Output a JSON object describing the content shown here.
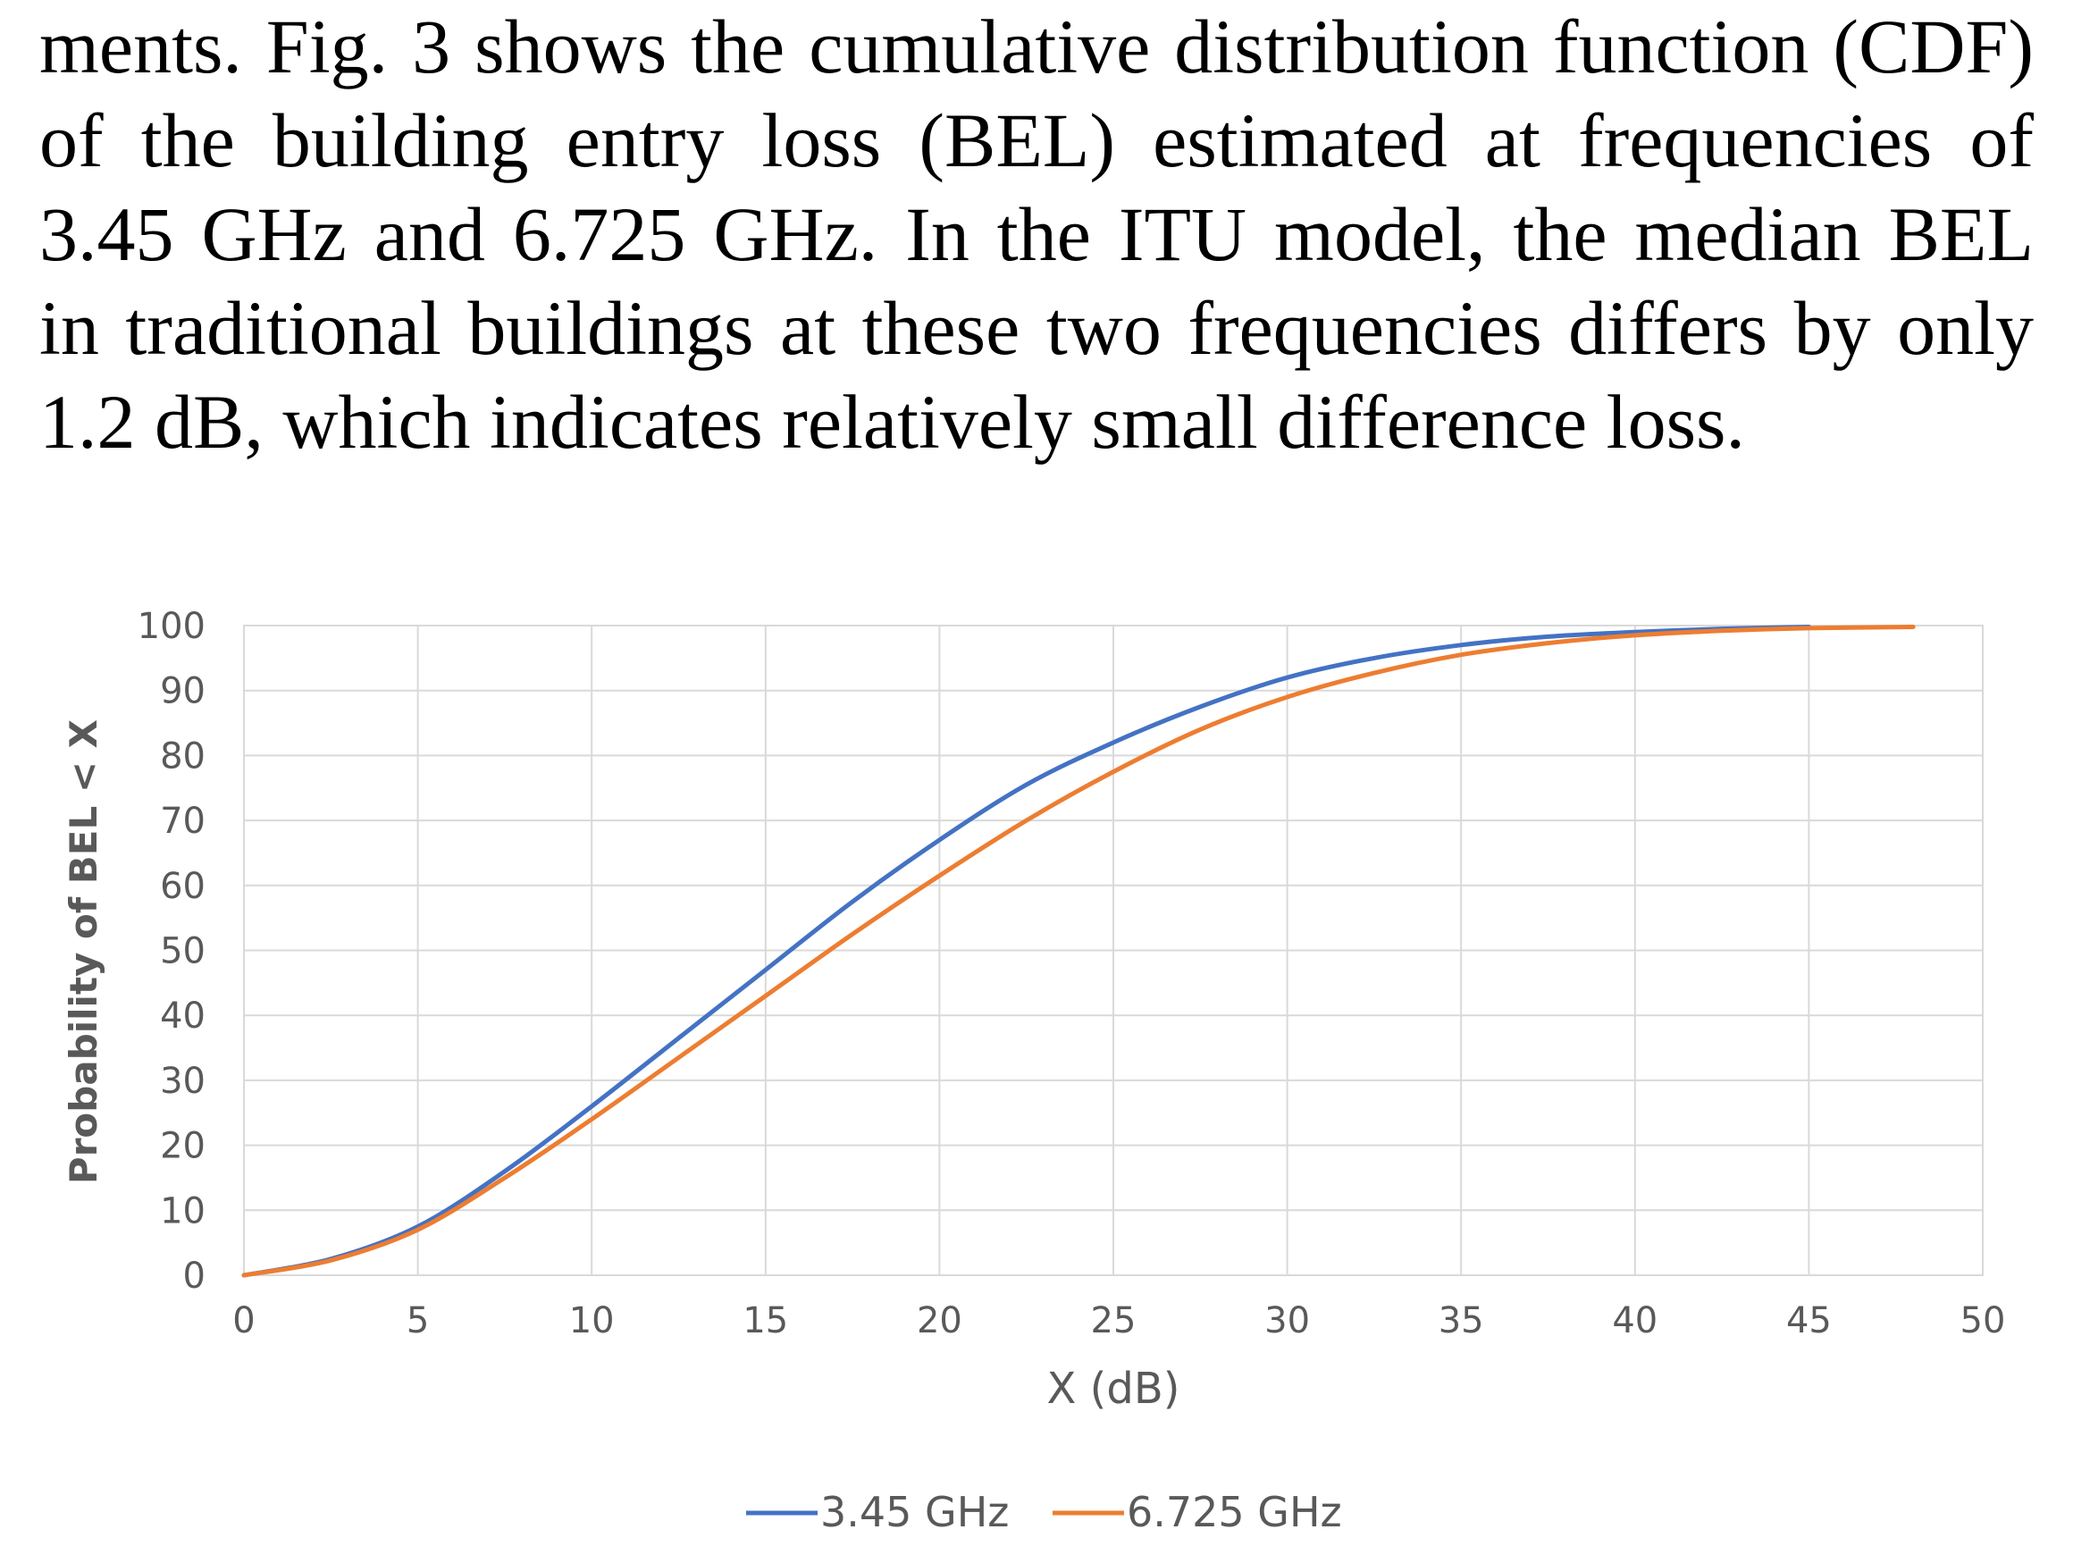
{
  "paragraph": {
    "lines": [
      "ments. Fig. 3 shows the cumulative distribution function (CDF)",
      "of the building entry loss (BEL) estimated at frequencies of",
      "3.45 GHz and 6.725 GHz. In the ITU model, the median BEL",
      "in traditional buildings at these two frequencies differs by only",
      "1.2 dB, which indicates relatively small difference loss."
    ]
  },
  "chart_data": {
    "type": "line",
    "title": "",
    "xlabel": "X (dB)",
    "ylabel": "Probability of BEL < X",
    "xlim": [
      0,
      50
    ],
    "ylim": [
      0,
      100
    ],
    "x_ticks": [
      "0",
      "5",
      "10",
      "15",
      "20",
      "25",
      "30",
      "35",
      "40",
      "45",
      "50"
    ],
    "y_ticks": [
      "0",
      "10",
      "20",
      "30",
      "40",
      "50",
      "60",
      "70",
      "80",
      "90",
      "100"
    ],
    "grid": true,
    "legend_position": "bottom",
    "colors": {
      "series_1": "#4472C4",
      "series_2": "#ED7D31",
      "grid": "#d9d9d9",
      "axis_text": "#595959"
    },
    "series": [
      {
        "name": "3.45 GHz",
        "x": [
          0,
          2.5,
          5,
          7.5,
          10,
          12.5,
          15,
          17.5,
          20,
          22.5,
          25,
          27.5,
          30,
          32.5,
          35,
          37.5,
          40,
          42.5,
          45
        ],
        "y": [
          0,
          2.5,
          7.5,
          16,
          26,
          36.5,
          47,
          57.5,
          67,
          75.5,
          82,
          87.5,
          92,
          95,
          97,
          98.3,
          99,
          99.5,
          99.8
        ]
      },
      {
        "name": "6.725 GHz",
        "x": [
          0,
          2.5,
          5,
          7.5,
          10,
          12.5,
          15,
          17.5,
          20,
          22.5,
          25,
          27.5,
          30,
          32.5,
          35,
          37.5,
          40,
          42.5,
          45,
          48
        ],
        "y": [
          0,
          2.3,
          7,
          15,
          24,
          33.5,
          43,
          52.5,
          61.5,
          70,
          77.5,
          84,
          89,
          92.7,
          95.5,
          97.3,
          98.5,
          99.2,
          99.6,
          99.8
        ]
      }
    ]
  }
}
